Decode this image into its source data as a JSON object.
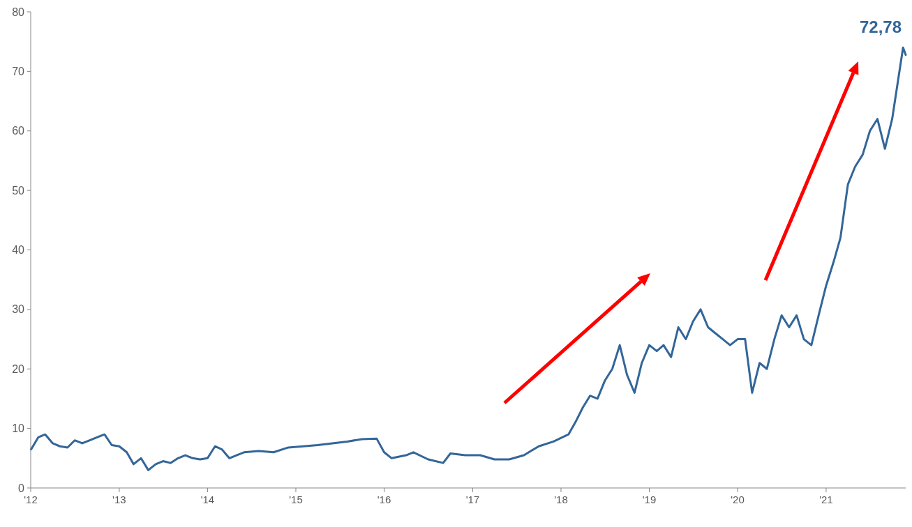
{
  "chart_data": {
    "type": "line",
    "x": [
      "2012-01-03",
      "2012-02-01",
      "2012-03-01",
      "2012-04-01",
      "2012-05-01",
      "2012-06-01",
      "2012-07-01",
      "2012-08-01",
      "2012-09-01",
      "2012-10-01",
      "2012-11-01",
      "2012-12-01",
      "2013-01-01",
      "2013-02-01",
      "2013-03-01",
      "2013-04-01",
      "2013-05-01",
      "2013-06-01",
      "2013-07-01",
      "2013-08-01",
      "2013-09-01",
      "2013-10-01",
      "2013-11-01",
      "2013-12-01",
      "2014-01-01",
      "2014-02-01",
      "2014-03-01",
      "2014-04-01",
      "2014-05-01",
      "2014-06-01",
      "2014-08-01",
      "2014-10-01",
      "2014-12-01",
      "2015-02-01",
      "2015-04-01",
      "2015-06-01",
      "2015-08-01",
      "2015-10-01",
      "2015-12-01",
      "2016-01-01",
      "2016-02-01",
      "2016-04-01",
      "2016-05-01",
      "2016-07-01",
      "2016-09-01",
      "2016-10-01",
      "2016-12-01",
      "2017-02-01",
      "2017-04-01",
      "2017-06-01",
      "2017-08-01",
      "2017-10-01",
      "2017-12-01",
      "2018-02-01",
      "2018-03-01",
      "2018-04-01",
      "2018-05-01",
      "2018-06-01",
      "2018-07-01",
      "2018-08-01",
      "2018-09-01",
      "2018-10-01",
      "2018-11-01",
      "2018-12-01",
      "2019-01-01",
      "2019-02-01",
      "2019-03-01",
      "2019-04-01",
      "2019-05-01",
      "2019-06-01",
      "2019-07-01",
      "2019-08-01",
      "2019-09-01",
      "2019-10-01",
      "2019-11-01",
      "2019-12-01",
      "2020-01-01",
      "2020-02-01",
      "2020-03-01",
      "2020-04-01",
      "2020-05-01",
      "2020-06-01",
      "2020-07-01",
      "2020-08-01",
      "2020-09-01",
      "2020-10-01",
      "2020-11-01",
      "2020-12-01",
      "2021-01-01",
      "2021-02-01",
      "2021-03-01",
      "2021-04-01",
      "2021-05-01",
      "2021-06-01",
      "2021-07-01",
      "2021-08-01",
      "2021-09-01",
      "2021-10-01",
      "2021-11-15",
      "2021-11-26"
    ],
    "series": [
      {
        "color": "#336699",
        "values": [
          6.5,
          8.5,
          9,
          7.5,
          7,
          6.8,
          8,
          7.5,
          8,
          8.5,
          9,
          7.2,
          7,
          6,
          4,
          5,
          3,
          4,
          4.5,
          4.2,
          5,
          5.5,
          5,
          4.8,
          5,
          7,
          6.5,
          5,
          5.5,
          6,
          6.2,
          6,
          6.8,
          7,
          7.2,
          7.5,
          7.8,
          8.2,
          8.3,
          6,
          5,
          5.5,
          6,
          4.8,
          4.2,
          5.8,
          5.5,
          5.5,
          4.8,
          4.8,
          5.5,
          7,
          7.8,
          9,
          11,
          13.5,
          15.5,
          15,
          18,
          20,
          24,
          19,
          16,
          21,
          24,
          23,
          24,
          22,
          27,
          25,
          28,
          30,
          27,
          26,
          25,
          24,
          25,
          25,
          16,
          21,
          20,
          25,
          29,
          27,
          29,
          25,
          24,
          29,
          34,
          38,
          42,
          51,
          54,
          56,
          60,
          62,
          57,
          62,
          74,
          72.78
        ]
      }
    ],
    "xlim": [
      "2012-01-01",
      "2021-11-26"
    ],
    "xticks": [
      {
        "value": "2012-01-01",
        "label": "'12"
      },
      {
        "value": "2013-01-01",
        "label": "'13"
      },
      {
        "value": "2014-01-01",
        "label": "'14"
      },
      {
        "value": "2015-01-01",
        "label": "'15"
      },
      {
        "value": "2016-01-01",
        "label": "'16"
      },
      {
        "value": "2017-01-01",
        "label": "'17"
      },
      {
        "value": "2018-01-01",
        "label": "'18"
      },
      {
        "value": "2019-01-01",
        "label": "'19"
      },
      {
        "value": "2020-01-01",
        "label": "'20"
      },
      {
        "value": "2021-01-01",
        "label": "'21"
      }
    ],
    "ylim": [
      0,
      80
    ],
    "yticks": [
      0,
      10,
      20,
      30,
      40,
      50,
      60,
      70,
      80
    ],
    "annotations": [
      {
        "text": "72,78",
        "x": "2021-11-26",
        "y": 72.78
      }
    ],
    "grid": false
  }
}
